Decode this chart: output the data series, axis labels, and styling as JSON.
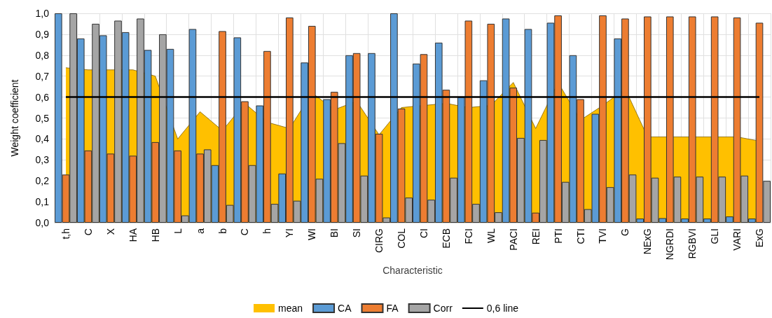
{
  "chart_data": {
    "type": "bar",
    "xlabel": "Characteristic",
    "ylabel": "Weight coefficient",
    "categories": [
      "t,h",
      "C",
      "X",
      "HA",
      "HB",
      "L",
      "a",
      "b",
      "C",
      "h",
      "YI",
      "WI",
      "BI",
      "SI",
      "CIRG",
      "COL",
      "CI",
      "ECB",
      "FCI",
      "WL",
      "PACI",
      "REI",
      "PTI",
      "CTI",
      "TVI",
      "G",
      "NExG",
      "NGRDI",
      "RGBVI",
      "GLI",
      "VARI",
      "ExG"
    ],
    "series": [
      {
        "name": "mean",
        "type": "area",
        "color": "#ffc000",
        "values": [
          0.74,
          0.73,
          0.73,
          0.73,
          0.7,
          0.4,
          0.53,
          0.44,
          0.57,
          0.48,
          0.45,
          0.62,
          0.54,
          0.58,
          0.42,
          0.55,
          0.56,
          0.57,
          0.55,
          0.56,
          0.67,
          0.45,
          0.67,
          0.49,
          0.56,
          0.64,
          0.41,
          0.41,
          0.41,
          0.41,
          0.41,
          0.39
        ]
      },
      {
        "name": "CA",
        "color": "#5b9bd5",
        "values": [
          1.0,
          0.88,
          0.895,
          0.91,
          0.825,
          0.83,
          0.925,
          0.275,
          0.885,
          0.56,
          0.235,
          0.765,
          0.59,
          0.8,
          0.81,
          1.0,
          0.76,
          0.86,
          0.6,
          0.68,
          0.975,
          0.925,
          0.955,
          0.8,
          0.52,
          0.88,
          0.02,
          0.022,
          0.02,
          0.02,
          0.03,
          0.02
        ]
      },
      {
        "name": "FA",
        "color": "#ed7d31",
        "values": [
          0.23,
          0.345,
          0.33,
          0.32,
          0.385,
          0.345,
          0.33,
          0.915,
          0.58,
          0.82,
          0.98,
          0.94,
          0.625,
          0.81,
          0.425,
          0.545,
          0.805,
          0.635,
          0.965,
          0.95,
          0.645,
          0.048,
          0.99,
          0.59,
          0.99,
          0.975,
          0.985,
          0.985,
          0.985,
          0.985,
          0.98,
          0.955
        ]
      },
      {
        "name": "Corr",
        "color": "#a5a5a5",
        "values": [
          1.0,
          0.95,
          0.965,
          0.975,
          0.9,
          0.035,
          0.35,
          0.085,
          0.275,
          0.09,
          0.105,
          0.21,
          0.38,
          0.225,
          0.025,
          0.12,
          0.11,
          0.215,
          0.09,
          0.05,
          0.405,
          0.395,
          0.195,
          0.065,
          0.17,
          0.23,
          0.215,
          0.22,
          0.22,
          0.22,
          0.225,
          0.2
        ]
      },
      {
        "name": "0,6 line",
        "type": "line",
        "color": "#000000",
        "values": [
          0.6,
          0.6,
          0.6,
          0.6,
          0.6,
          0.6,
          0.6,
          0.6,
          0.6,
          0.6,
          0.6,
          0.6,
          0.6,
          0.6,
          0.6,
          0.6,
          0.6,
          0.6,
          0.6,
          0.6,
          0.6,
          0.6,
          0.6,
          0.6,
          0.6,
          0.6,
          0.6,
          0.6,
          0.6,
          0.6,
          0.6,
          0.6
        ]
      }
    ],
    "ylim": [
      0,
      1
    ],
    "yticks": [
      {
        "value": 0,
        "label": "0,0"
      },
      {
        "value": 0.1,
        "label": "0,1"
      },
      {
        "value": 0.2,
        "label": "0,2"
      },
      {
        "value": 0.3,
        "label": "0,3"
      },
      {
        "value": 0.4,
        "label": "0,4"
      },
      {
        "value": 0.5,
        "label": "0,5"
      },
      {
        "value": 0.6,
        "label": "0,6"
      },
      {
        "value": 0.7,
        "label": "0,7"
      },
      {
        "value": 0.8,
        "label": "0,8"
      },
      {
        "value": 0.9,
        "label": "0,9"
      },
      {
        "value": 1,
        "label": "1,0"
      }
    ],
    "grid": true,
    "legend": "bottom"
  }
}
